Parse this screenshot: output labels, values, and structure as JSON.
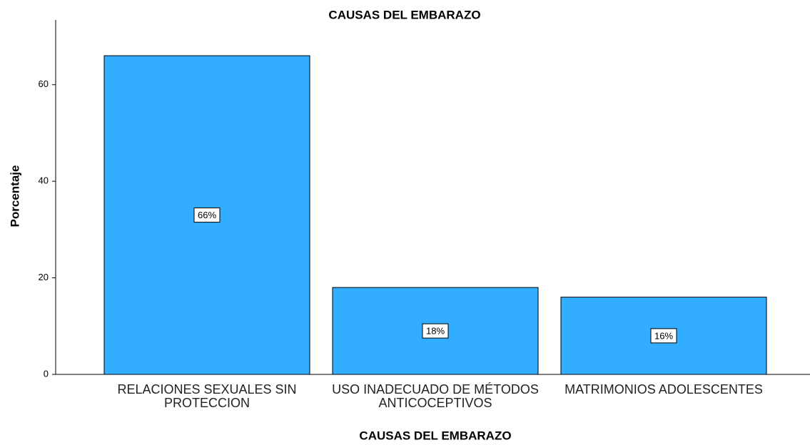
{
  "chart_data": {
    "type": "bar",
    "title": "CAUSAS DEL EMBARAZO",
    "x_label": "CAUSAS DEL EMBARAZO",
    "y_label": "Porcentaje",
    "categories": [
      "RELACIONES SEXUALES SIN PROTECCION",
      "USO INADECUADO DE MÉTODOS ANTICOCEPTIVOS",
      "MATRIMONIOS ADOLESCENTES"
    ],
    "values": [
      66,
      18,
      16
    ],
    "value_labels": [
      "66%",
      "18%",
      "16%"
    ],
    "color": "#33adff",
    "ylim": [
      0,
      73.4
    ],
    "yticks": [
      0,
      20,
      40,
      60
    ],
    "grid": false
  }
}
